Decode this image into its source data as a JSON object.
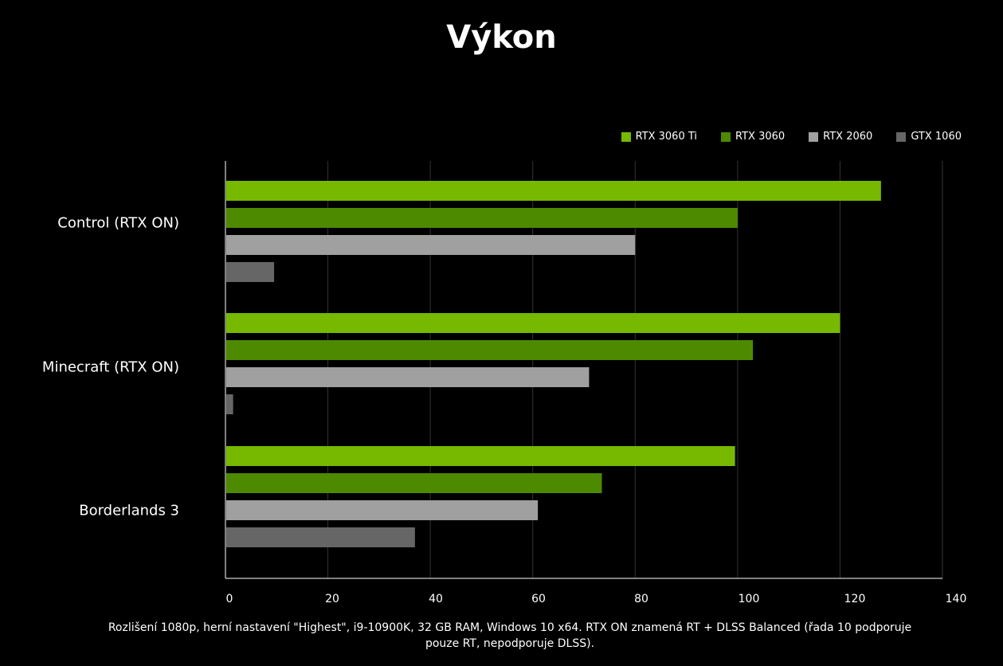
{
  "title": "Výkon",
  "footnote": "Rozlišení 1080p, herní nastavení \"Highest\", i9-10900K, 32 GB RAM, Windows 10 x64. RTX ON znamená RT + DLSS Balanced (řada 10 podporuje pouze RT, nepodporuje DLSS).",
  "colors": {
    "background": "#000000",
    "grid": "#333333",
    "axis": "#ffffff"
  },
  "chart_data": {
    "type": "bar",
    "orientation": "horizontal",
    "categories": [
      "Control (RTX ON)",
      "Minecraft (RTX ON)",
      "Borderlands 3"
    ],
    "series": [
      {
        "name": "RTX 3060 Ti",
        "color": "#76b900",
        "values": [
          128,
          120,
          99.5
        ]
      },
      {
        "name": "RTX 3060",
        "color": "#4e8a00",
        "values": [
          100,
          103,
          73.5
        ]
      },
      {
        "name": "RTX 2060",
        "color": "#a0a0a0",
        "values": [
          80,
          71,
          61
        ]
      },
      {
        "name": "GTX 1060",
        "color": "#666666",
        "values": [
          9.5,
          1.5,
          37
        ]
      }
    ],
    "xlim": [
      0,
      140
    ],
    "xticks": [
      "0",
      "20",
      "40",
      "60",
      "80",
      "100",
      "120",
      "140"
    ],
    "xtick_values": [
      0,
      20,
      40,
      60,
      80,
      100,
      120,
      140
    ],
    "grid": true,
    "legend_position": "top-right"
  }
}
